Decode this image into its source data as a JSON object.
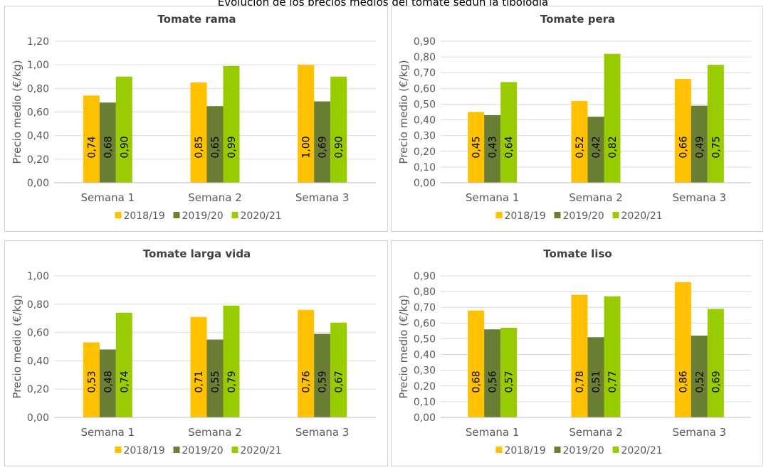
{
  "top_text": "Evolución de los precios medios del tomate según la tipología",
  "colors": [
    "#FFC000",
    "#6A7F33",
    "#99CC00"
  ],
  "chart_data": [
    {
      "type": "bar",
      "title": "Tomate rama",
      "ylabel": "Precio medio (€/kg)",
      "xlabel": "",
      "categories": [
        "Semana 1",
        "Semana 2",
        "Semana 3"
      ],
      "ylim": [
        0,
        1.2
      ],
      "yticks": [
        "0,00",
        "0,20",
        "0,40",
        "0,60",
        "0,80",
        "1,00",
        "1,20"
      ],
      "ytick_values": [
        0,
        0.2,
        0.4,
        0.6,
        0.8,
        1.0,
        1.2
      ],
      "series": [
        {
          "name": "2018/19",
          "values": [
            0.74,
            0.85,
            1.0
          ],
          "labels": [
            "0,74",
            "0,85",
            "1,00"
          ]
        },
        {
          "name": "2019/20",
          "values": [
            0.68,
            0.65,
            0.69
          ],
          "labels": [
            "0,68",
            "0,65",
            "0,69"
          ]
        },
        {
          "name": "2020/21",
          "values": [
            0.9,
            0.99,
            0.9
          ],
          "labels": [
            "0,90",
            "0,99",
            "0,90"
          ]
        }
      ],
      "legend": "bottom",
      "grid": true
    },
    {
      "type": "bar",
      "title": "Tomate pera",
      "ylabel": "Precio medio (€/kg)",
      "xlabel": "",
      "categories": [
        "Semana 1",
        "Semana 2",
        "Semana 3"
      ],
      "ylim": [
        0,
        0.9
      ],
      "yticks": [
        "0,00",
        "0,10",
        "0,20",
        "0,30",
        "0,40",
        "0,50",
        "0,60",
        "0,70",
        "0,80",
        "0,90"
      ],
      "ytick_values": [
        0,
        0.1,
        0.2,
        0.3,
        0.4,
        0.5,
        0.6,
        0.7,
        0.8,
        0.9
      ],
      "series": [
        {
          "name": "2018/19",
          "values": [
            0.45,
            0.52,
            0.66
          ],
          "labels": [
            "0,45",
            "0,52",
            "0,66"
          ]
        },
        {
          "name": "2019/20",
          "values": [
            0.43,
            0.42,
            0.49
          ],
          "labels": [
            "0,43",
            "0,42",
            "0,49"
          ]
        },
        {
          "name": "2020/21",
          "values": [
            0.64,
            0.82,
            0.75
          ],
          "labels": [
            "0,64",
            "0,82",
            "0,75"
          ]
        }
      ],
      "legend": "bottom",
      "grid": true
    },
    {
      "type": "bar",
      "title": "Tomate larga vida",
      "ylabel": "Precio medio (€/kg)",
      "xlabel": "",
      "categories": [
        "Semana 1",
        "Semana 2",
        "Semana 3"
      ],
      "ylim": [
        0,
        1.0
      ],
      "yticks": [
        "0,00",
        "0,20",
        "0,40",
        "0,60",
        "0,80",
        "1,00"
      ],
      "ytick_values": [
        0,
        0.2,
        0.4,
        0.6,
        0.8,
        1.0
      ],
      "series": [
        {
          "name": "2018/19",
          "values": [
            0.53,
            0.71,
            0.76
          ],
          "labels": [
            "0,53",
            "0,71",
            "0,76"
          ]
        },
        {
          "name": "2019/20",
          "values": [
            0.48,
            0.55,
            0.59
          ],
          "labels": [
            "0,48",
            "0,55",
            "0,59"
          ]
        },
        {
          "name": "2020/21",
          "values": [
            0.74,
            0.79,
            0.67
          ],
          "labels": [
            "0,74",
            "0,79",
            "0,67"
          ]
        }
      ],
      "legend": "bottom",
      "grid": true
    },
    {
      "type": "bar",
      "title": "Tomate liso",
      "ylabel": "Precio medio (€/kg)",
      "xlabel": "",
      "categories": [
        "Semana 1",
        "Semana 2",
        "Semana 3"
      ],
      "ylim": [
        0,
        0.9
      ],
      "yticks": [
        "0,00",
        "0,10",
        "0,20",
        "0,30",
        "0,40",
        "0,50",
        "0,60",
        "0,70",
        "0,80",
        "0,90"
      ],
      "ytick_values": [
        0,
        0.1,
        0.2,
        0.3,
        0.4,
        0.5,
        0.6,
        0.7,
        0.8,
        0.9
      ],
      "series": [
        {
          "name": "2018/19",
          "values": [
            0.68,
            0.78,
            0.86
          ],
          "labels": [
            "0,68",
            "0,78",
            "0,86"
          ]
        },
        {
          "name": "2019/20",
          "values": [
            0.56,
            0.51,
            0.52
          ],
          "labels": [
            "0,56",
            "0,51",
            "0,52"
          ]
        },
        {
          "name": "2020/21",
          "values": [
            0.57,
            0.77,
            0.69
          ],
          "labels": [
            "0,57",
            "0,77",
            "0,69"
          ]
        }
      ],
      "legend": "bottom",
      "grid": true
    }
  ]
}
